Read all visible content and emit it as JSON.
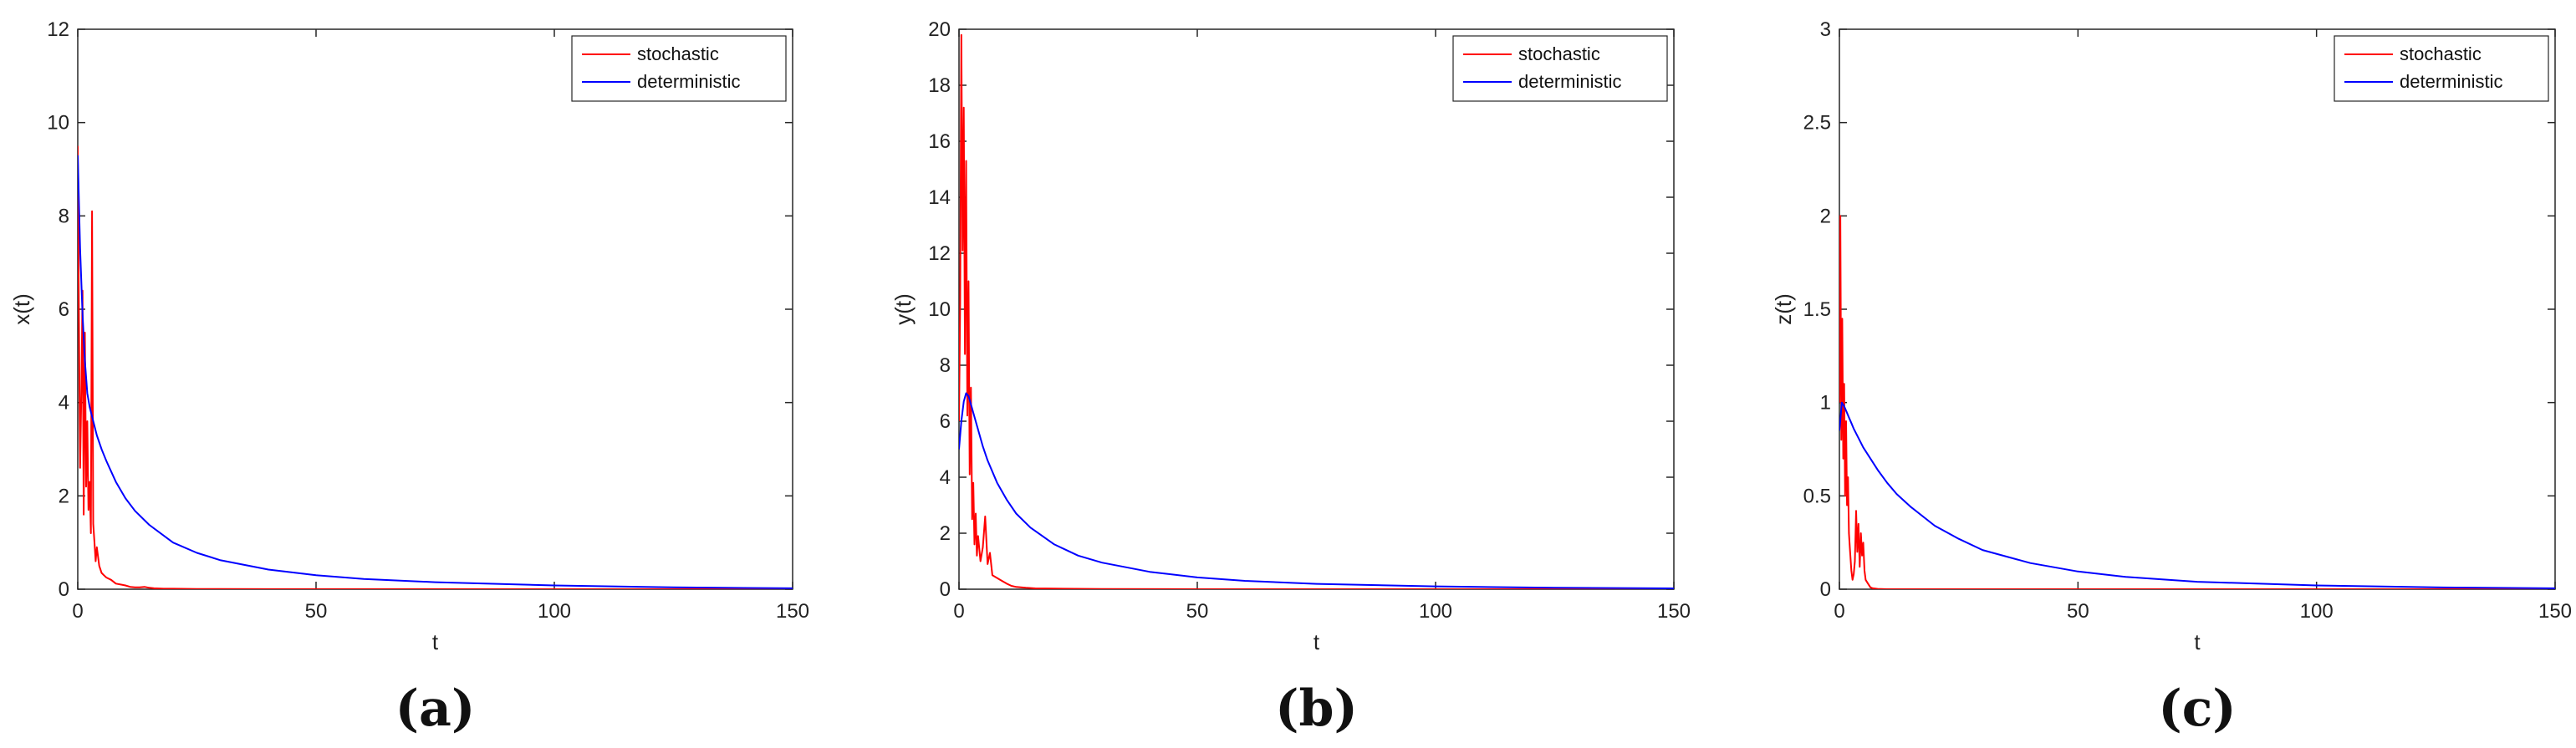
{
  "colors": {
    "stochastic": "#ff0000",
    "deterministic": "#0000ff",
    "axis": "#262626"
  },
  "chart_data": [
    {
      "type": "line",
      "panel_label": "(a)",
      "xlabel": "t",
      "ylabel": "x(t)",
      "xlim": [
        0,
        150
      ],
      "ylim": [
        0,
        12
      ],
      "xticks": [
        0,
        50,
        100,
        150
      ],
      "yticks": [
        0,
        2,
        4,
        6,
        8,
        10,
        12
      ],
      "grid": false,
      "legend_position": "top-right",
      "series": [
        {
          "name": "stochastic",
          "color": "#ff0000",
          "x": [
            0,
            0.25,
            0.5,
            0.75,
            1,
            1.25,
            1.5,
            1.75,
            2,
            2.25,
            2.5,
            2.75,
            3,
            3.25,
            3.5,
            3.75,
            4,
            4.5,
            5,
            5.5,
            6,
            7,
            8,
            9,
            10,
            11,
            12,
            13,
            14,
            15,
            16,
            18,
            20,
            25,
            30,
            40,
            60,
            100,
            150
          ],
          "y": [
            9.5,
            5.8,
            2.6,
            4.2,
            6.4,
            1.6,
            5.5,
            2.2,
            3.6,
            1.7,
            2.3,
            1.2,
            8.1,
            1.4,
            1.0,
            0.6,
            0.9,
            0.5,
            0.35,
            0.3,
            0.25,
            0.2,
            0.12,
            0.1,
            0.08,
            0.05,
            0.04,
            0.04,
            0.05,
            0.03,
            0.02,
            0.01,
            0.01,
            0.005,
            0.003,
            0.002,
            0.001,
            0.0,
            0.0
          ]
        },
        {
          "name": "deterministic",
          "color": "#0000ff",
          "x": [
            0,
            0.5,
            1,
            1.5,
            2,
            2.5,
            3,
            4,
            5,
            6,
            8,
            10,
            12,
            15,
            20,
            25,
            30,
            40,
            50,
            60,
            75,
            100,
            125,
            150
          ],
          "y": [
            9.3,
            7.3,
            5.9,
            4.9,
            4.2,
            3.9,
            3.7,
            3.3,
            3.0,
            2.75,
            2.3,
            1.95,
            1.68,
            1.38,
            1.0,
            0.78,
            0.62,
            0.42,
            0.3,
            0.22,
            0.15,
            0.08,
            0.04,
            0.02
          ]
        }
      ]
    },
    {
      "type": "line",
      "panel_label": "(b)",
      "xlabel": "t",
      "ylabel": "y(t)",
      "xlim": [
        0,
        150
      ],
      "ylim": [
        0,
        20
      ],
      "xticks": [
        0,
        50,
        100,
        150
      ],
      "yticks": [
        0,
        2,
        4,
        6,
        8,
        10,
        12,
        14,
        16,
        18,
        20
      ],
      "grid": false,
      "legend_position": "top-right",
      "series": [
        {
          "name": "stochastic",
          "color": "#ff0000",
          "x": [
            0,
            0.25,
            0.5,
            0.75,
            1,
            1.25,
            1.5,
            1.75,
            2,
            2.25,
            2.5,
            2.75,
            3,
            3.25,
            3.5,
            3.75,
            4,
            4.5,
            5,
            5.5,
            6,
            6.5,
            7,
            8,
            9,
            10,
            11,
            12,
            14,
            16,
            20,
            30,
            50,
            100,
            150
          ],
          "y": [
            6.0,
            10.2,
            19.8,
            12.1,
            17.2,
            8.4,
            15.3,
            6.2,
            11.0,
            4.1,
            7.2,
            2.5,
            3.8,
            1.6,
            2.7,
            1.2,
            1.9,
            1.0,
            1.5,
            2.6,
            0.9,
            1.3,
            0.5,
            0.4,
            0.3,
            0.2,
            0.12,
            0.08,
            0.05,
            0.03,
            0.02,
            0.01,
            0.0,
            0.0,
            0.0
          ]
        },
        {
          "name": "deterministic",
          "color": "#0000ff",
          "x": [
            0,
            0.5,
            1,
            1.5,
            2,
            2.5,
            3,
            4,
            5,
            6,
            8,
            10,
            12,
            15,
            20,
            25,
            30,
            40,
            50,
            60,
            75,
            100,
            125,
            150
          ],
          "y": [
            5.0,
            6.0,
            6.7,
            7.0,
            6.9,
            6.6,
            6.3,
            5.7,
            5.1,
            4.6,
            3.8,
            3.2,
            2.7,
            2.2,
            1.6,
            1.2,
            0.95,
            0.62,
            0.42,
            0.3,
            0.19,
            0.1,
            0.05,
            0.03
          ]
        }
      ]
    },
    {
      "type": "line",
      "panel_label": "(c)",
      "xlabel": "t",
      "ylabel": "z(t)",
      "xlim": [
        0,
        150
      ],
      "ylim": [
        0,
        3
      ],
      "xticks": [
        0,
        50,
        100,
        150
      ],
      "yticks": [
        0,
        0.5,
        1,
        1.5,
        2,
        2.5,
        3
      ],
      "grid": false,
      "legend_position": "top-right",
      "series": [
        {
          "name": "stochastic",
          "color": "#ff0000",
          "x": [
            0,
            0.2,
            0.4,
            0.6,
            0.8,
            1,
            1.2,
            1.4,
            1.6,
            1.8,
            2,
            2.25,
            2.5,
            2.75,
            3,
            3.25,
            3.5,
            3.75,
            4,
            4.25,
            4.5,
            4.75,
            5,
            5.25,
            5.5,
            6,
            6.5,
            7,
            8,
            10,
            15,
            30,
            60,
            100,
            150
          ],
          "y": [
            1.0,
            2.0,
            0.8,
            1.45,
            0.7,
            1.1,
            0.5,
            0.9,
            0.45,
            0.6,
            0.3,
            0.2,
            0.1,
            0.05,
            0.08,
            0.15,
            0.42,
            0.2,
            0.35,
            0.12,
            0.3,
            0.18,
            0.25,
            0.1,
            0.05,
            0.03,
            0.01,
            0.005,
            0.002,
            0.0,
            0.0,
            0.0,
            0.0,
            0.0,
            0.0
          ]
        },
        {
          "name": "deterministic",
          "color": "#0000ff",
          "x": [
            0,
            0.5,
            1,
            1.5,
            2,
            2.5,
            3,
            4,
            5,
            6,
            8,
            10,
            12,
            15,
            20,
            25,
            30,
            40,
            50,
            60,
            75,
            100,
            125,
            150
          ],
          "y": [
            0.85,
            1.0,
            0.98,
            0.95,
            0.92,
            0.89,
            0.86,
            0.81,
            0.76,
            0.72,
            0.64,
            0.57,
            0.51,
            0.44,
            0.34,
            0.27,
            0.21,
            0.14,
            0.095,
            0.066,
            0.04,
            0.02,
            0.01,
            0.005
          ]
        }
      ]
    }
  ]
}
